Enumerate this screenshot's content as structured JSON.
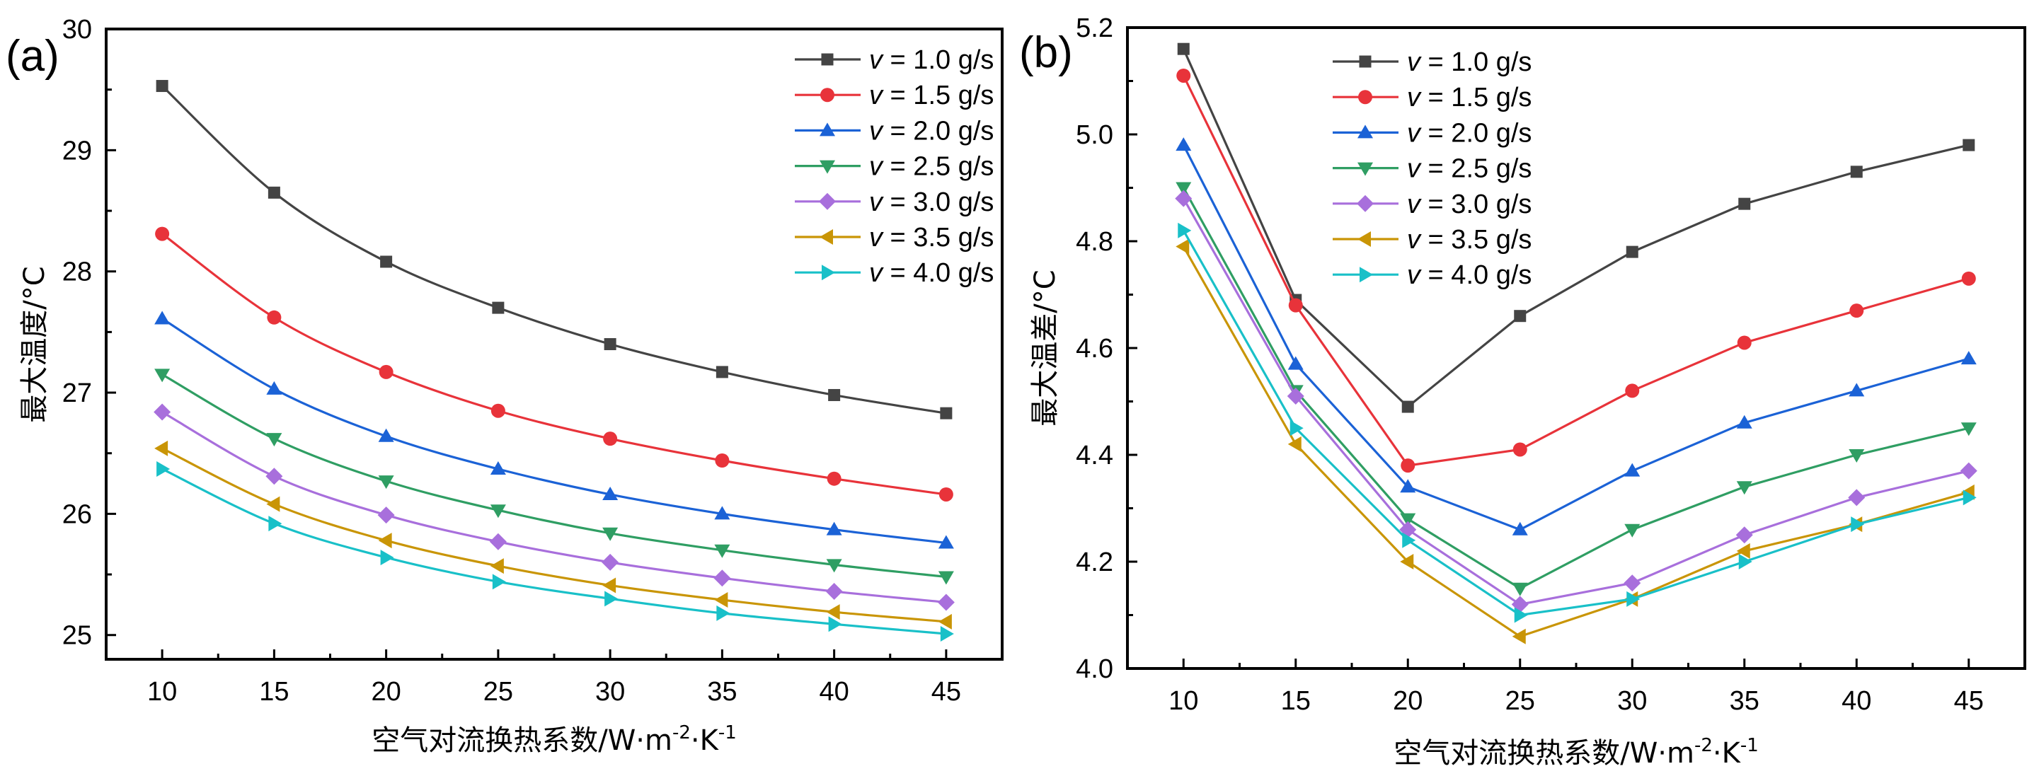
{
  "chart_data": [
    {
      "type": "line",
      "panel_label": "(a)",
      "title": "",
      "xlabel": "空气对流换热系数/W·m⁻²·K⁻¹",
      "xlabel_main": "空气对流换热系数/W·m",
      "xlabel_sup1": "-2",
      "xlabel_mid": "·K",
      "xlabel_sup2": "-1",
      "ylabel": "最大温度/°C",
      "xlim": [
        7.5,
        47.5
      ],
      "ylim": [
        24.8,
        30
      ],
      "xticks": [
        10,
        15,
        20,
        25,
        30,
        35,
        40,
        45
      ],
      "xtick_labels": [
        "10",
        "15",
        "20",
        "25",
        "30",
        "35",
        "40",
        "45"
      ],
      "yticks": [
        25,
        26,
        27,
        28,
        29,
        30
      ],
      "ytick_labels": [
        "25",
        "26",
        "27",
        "28",
        "29",
        "30"
      ],
      "y_minor_step": 0.5,
      "smooth": true,
      "legend_position": "top-right",
      "grid": false,
      "x": [
        10,
        15,
        20,
        25,
        30,
        35,
        40,
        45
      ],
      "series": [
        {
          "name": "v = 1.0 g/s",
          "v_label": "v",
          "rest_label": " = 1.0 g/s",
          "marker": "square",
          "color": "#444444",
          "values": [
            29.53,
            28.65,
            28.08,
            27.7,
            27.4,
            27.17,
            26.98,
            26.83
          ]
        },
        {
          "name": "v = 1.5 g/s",
          "v_label": "v",
          "rest_label": " = 1.5 g/s",
          "marker": "circle",
          "color": "#e8333a",
          "values": [
            28.31,
            27.62,
            27.17,
            26.85,
            26.62,
            26.44,
            26.29,
            26.16
          ]
        },
        {
          "name": "v = 2.0 g/s",
          "v_label": "v",
          "rest_label": " = 2.0 g/s",
          "marker": "triangle-up",
          "color": "#1b62d6",
          "values": [
            27.61,
            27.03,
            26.64,
            26.37,
            26.16,
            26.0,
            25.87,
            25.76
          ]
        },
        {
          "name": "v = 2.5 g/s",
          "v_label": "v",
          "rest_label": " = 2.5 g/s",
          "marker": "triangle-down",
          "color": "#2f9e63",
          "values": [
            27.15,
            26.62,
            26.27,
            26.03,
            25.84,
            25.7,
            25.58,
            25.48
          ]
        },
        {
          "name": "v = 3.0 g/s",
          "v_label": "v",
          "rest_label": " = 3.0 g/s",
          "marker": "diamond",
          "color": "#a86fdc",
          "values": [
            26.84,
            26.31,
            25.99,
            25.77,
            25.6,
            25.47,
            25.36,
            25.27
          ]
        },
        {
          "name": "v = 3.5 g/s",
          "v_label": "v",
          "rest_label": " = 3.5 g/s",
          "marker": "triangle-left",
          "color": "#c99506",
          "values": [
            26.54,
            26.08,
            25.78,
            25.57,
            25.41,
            25.29,
            25.19,
            25.11
          ]
        },
        {
          "name": "v = 4.0 g/s",
          "v_label": "v",
          "rest_label": " = 4.0 g/s",
          "marker": "triangle-right",
          "color": "#19c0c8",
          "values": [
            26.37,
            25.92,
            25.64,
            25.44,
            25.3,
            25.18,
            25.09,
            25.01
          ]
        }
      ]
    },
    {
      "type": "line",
      "panel_label": "(b)",
      "title": "",
      "xlabel": "空气对流换热系数/W·m⁻²·K⁻¹",
      "xlabel_main": "空气对流换热系数/W·m",
      "xlabel_sup1": "-2",
      "xlabel_mid": "·K",
      "xlabel_sup2": "-1",
      "ylabel": "最大温差/°C",
      "xlim": [
        7.5,
        47.5
      ],
      "ylim": [
        4.0,
        5.2
      ],
      "xticks": [
        10,
        15,
        20,
        25,
        30,
        35,
        40,
        45
      ],
      "xtick_labels": [
        "10",
        "15",
        "20",
        "25",
        "30",
        "35",
        "40",
        "45"
      ],
      "yticks": [
        4.0,
        4.2,
        4.4,
        4.6,
        4.8,
        5.0,
        5.2
      ],
      "ytick_labels": [
        "4.0",
        "4.2",
        "4.4",
        "4.6",
        "4.8",
        "5.0",
        "5.2"
      ],
      "y_minor_step": 0.1,
      "smooth": false,
      "legend_position": "top-center",
      "grid": false,
      "x": [
        10,
        15,
        20,
        25,
        30,
        35,
        40,
        45
      ],
      "series": [
        {
          "name": "v = 1.0 g/s",
          "v_label": "v",
          "rest_label": " = 1.0 g/s",
          "marker": "square",
          "color": "#444444",
          "values": [
            5.16,
            4.69,
            4.49,
            4.66,
            4.78,
            4.87,
            4.93,
            4.98
          ]
        },
        {
          "name": "v = 1.5 g/s",
          "v_label": "v",
          "rest_label": " = 1.5 g/s",
          "marker": "circle",
          "color": "#e8333a",
          "values": [
            5.11,
            4.68,
            4.38,
            4.41,
            4.52,
            4.61,
            4.67,
            4.73
          ]
        },
        {
          "name": "v = 2.0 g/s",
          "v_label": "v",
          "rest_label": " = 2.0 g/s",
          "marker": "triangle-up",
          "color": "#1b62d6",
          "values": [
            4.98,
            4.57,
            4.34,
            4.26,
            4.37,
            4.46,
            4.52,
            4.58
          ]
        },
        {
          "name": "v = 2.5 g/s",
          "v_label": "v",
          "rest_label": " = 2.5 g/s",
          "marker": "triangle-down",
          "color": "#2f9e63",
          "values": [
            4.9,
            4.52,
            4.28,
            4.15,
            4.26,
            4.34,
            4.4,
            4.45
          ]
        },
        {
          "name": "v = 3.0 g/s",
          "v_label": "v",
          "rest_label": " = 3.0 g/s",
          "marker": "diamond",
          "color": "#a86fdc",
          "values": [
            4.88,
            4.51,
            4.26,
            4.12,
            4.16,
            4.25,
            4.32,
            4.37
          ]
        },
        {
          "name": "v = 3.5 g/s",
          "v_label": "v",
          "rest_label": " = 3.5 g/s",
          "marker": "triangle-left",
          "color": "#c99506",
          "values": [
            4.79,
            4.42,
            4.2,
            4.06,
            4.13,
            4.22,
            4.27,
            4.33
          ]
        },
        {
          "name": "v = 4.0 g/s",
          "v_label": "v",
          "rest_label": " = 4.0 g/s",
          "marker": "triangle-right",
          "color": "#19c0c8",
          "values": [
            4.82,
            4.45,
            4.24,
            4.1,
            4.13,
            4.2,
            4.27,
            4.32
          ]
        }
      ]
    }
  ]
}
